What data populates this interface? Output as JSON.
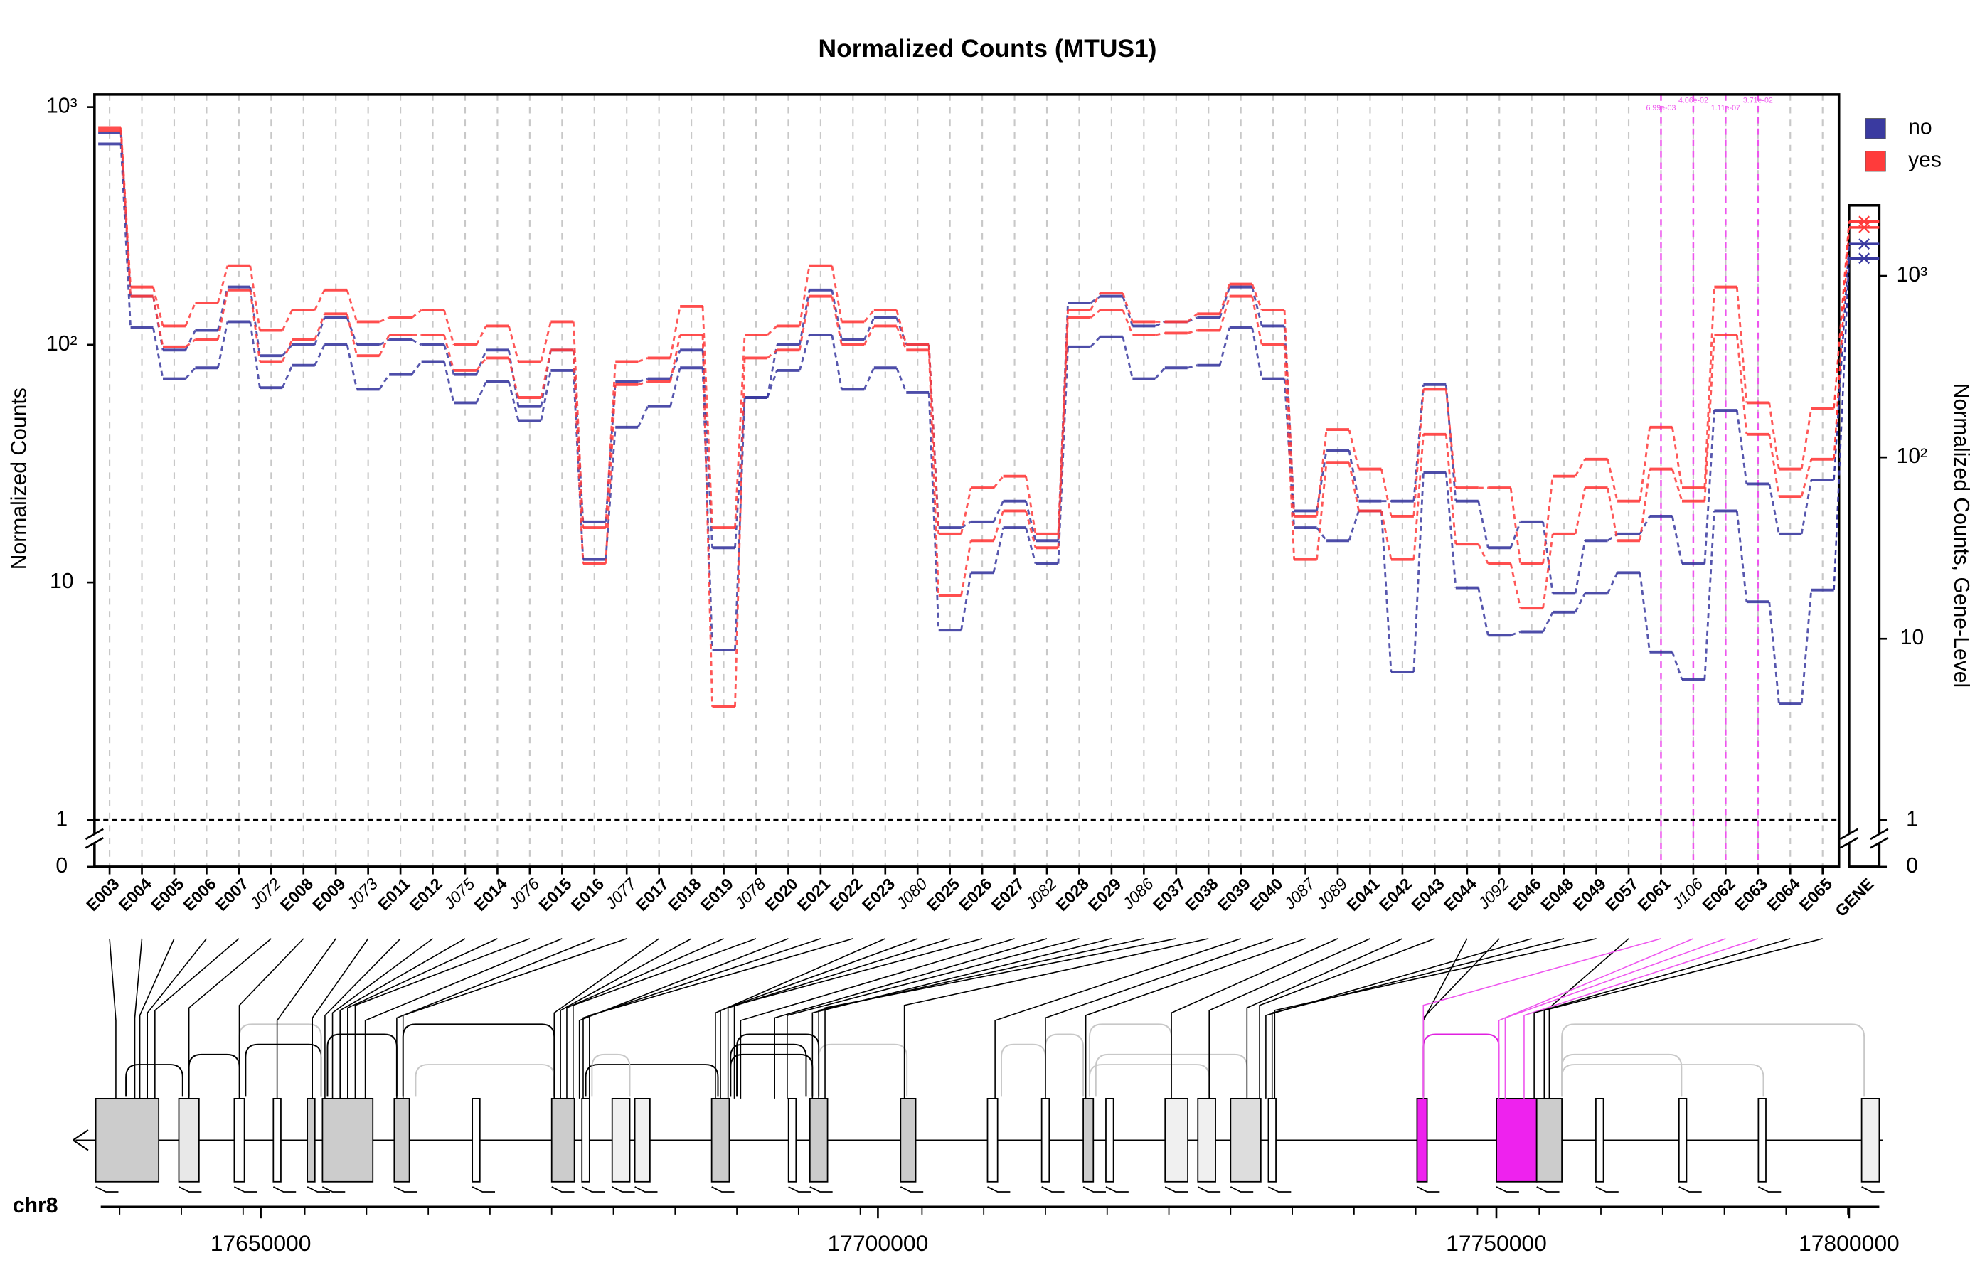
{
  "chart_data": {
    "type": "step-line",
    "title": "Normalized Counts (MTUS1)",
    "y_label": "Normalized Counts",
    "y2_label": "Normalized Counts, Gene-Level",
    "log_scale": true,
    "categories": [
      "E003",
      "E004",
      "E005",
      "E006",
      "E007",
      "J072",
      "E008",
      "E009",
      "J073",
      "E011",
      "E012",
      "J075",
      "E014",
      "J076",
      "E015",
      "E016",
      "J077",
      "E017",
      "E018",
      "E019",
      "J078",
      "E020",
      "E021",
      "E022",
      "E023",
      "J080",
      "E025",
      "E026",
      "E027",
      "J082",
      "E028",
      "E029",
      "J086",
      "E037",
      "E038",
      "E039",
      "E040",
      "J087",
      "J089",
      "E041",
      "E042",
      "E043",
      "E044",
      "J092",
      "E046",
      "E048",
      "E049",
      "E057",
      "E061",
      "J106",
      "E062",
      "E063",
      "E064",
      "E065"
    ],
    "gene_category": "GENE",
    "ylim": [
      1,
      1130
    ],
    "yticks": [
      1,
      10,
      {
        "value": 100,
        "label": "10²"
      },
      {
        "value": 1000,
        "label": "10³"
      }
    ],
    "zero_tick": 0,
    "y2lim": [
      1,
      2450
    ],
    "y2ticks": [
      1,
      10,
      {
        "value": 100,
        "label": "10²"
      },
      {
        "value": 1000,
        "label": "10³"
      }
    ],
    "reference_line": 1,
    "groups": [
      {
        "name": "no",
        "color": "#3a3aa0",
        "samples": [
          [
            780,
            160,
            95,
            115,
            175,
            90,
            100,
            130,
            100,
            105,
            100,
            75,
            95,
            55,
            95,
            18,
            70,
            72,
            95,
            14,
            60,
            100,
            170,
            105,
            130,
            100,
            17,
            18,
            22,
            15,
            150,
            160,
            120,
            125,
            130,
            175,
            120,
            20,
            36,
            22,
            22,
            68,
            22,
            14,
            18,
            9,
            15,
            16,
            19,
            12,
            53,
            26,
            16,
            27
          ],
          [
            700,
            118,
            72,
            80,
            125,
            66,
            82,
            100,
            65,
            75,
            85,
            57,
            70,
            48,
            78,
            12.5,
            45,
            55,
            80,
            5.2,
            60,
            78,
            110,
            65,
            80,
            63,
            6.3,
            11,
            17,
            12,
            98,
            108,
            72,
            80,
            82,
            118,
            72,
            17,
            15,
            20,
            4.2,
            29,
            9.5,
            6,
            6.2,
            7.5,
            9,
            11,
            5.1,
            3.9,
            20,
            8.3,
            3.1,
            9.3
          ]
        ],
        "gene_values": [
          1500,
          1250
        ]
      },
      {
        "name": "yes",
        "color": "#ff3b3b",
        "samples": [
          [
            820,
            175,
            120,
            150,
            215,
            115,
            140,
            170,
            125,
            130,
            140,
            100,
            120,
            85,
            125,
            17,
            85,
            88,
            145,
            17,
            110,
            120,
            215,
            125,
            140,
            100,
            16,
            25,
            28,
            16,
            140,
            165,
            125,
            125,
            135,
            180,
            140,
            19,
            44,
            30,
            19,
            65,
            25,
            25,
            12,
            28,
            33,
            22,
            45,
            25,
            175,
            57,
            30,
            54
          ],
          [
            800,
            160,
            98,
            105,
            170,
            85,
            105,
            135,
            90,
            110,
            110,
            78,
            88,
            60,
            95,
            12,
            68,
            70,
            110,
            3,
            88,
            95,
            160,
            100,
            120,
            95,
            8.8,
            15,
            20,
            14,
            130,
            140,
            110,
            112,
            115,
            160,
            100,
            12.5,
            32,
            20,
            12.5,
            42,
            14.5,
            12,
            7.8,
            16,
            25,
            15,
            30,
            22,
            110,
            42,
            23,
            33
          ]
        ],
        "gene_values": [
          2000,
          1850
        ]
      }
    ],
    "highlight": {
      "color": "#ee55ee",
      "categories": [
        "E061",
        "J106",
        "E062",
        "E063"
      ],
      "labels": [
        "6.99e-03",
        "4.06e-02",
        "1.11e-07",
        "3.71e-02"
      ]
    },
    "chromosome": "chr8",
    "genome_ticks": [
      17650000,
      17700000,
      17750000,
      17800000
    ]
  }
}
